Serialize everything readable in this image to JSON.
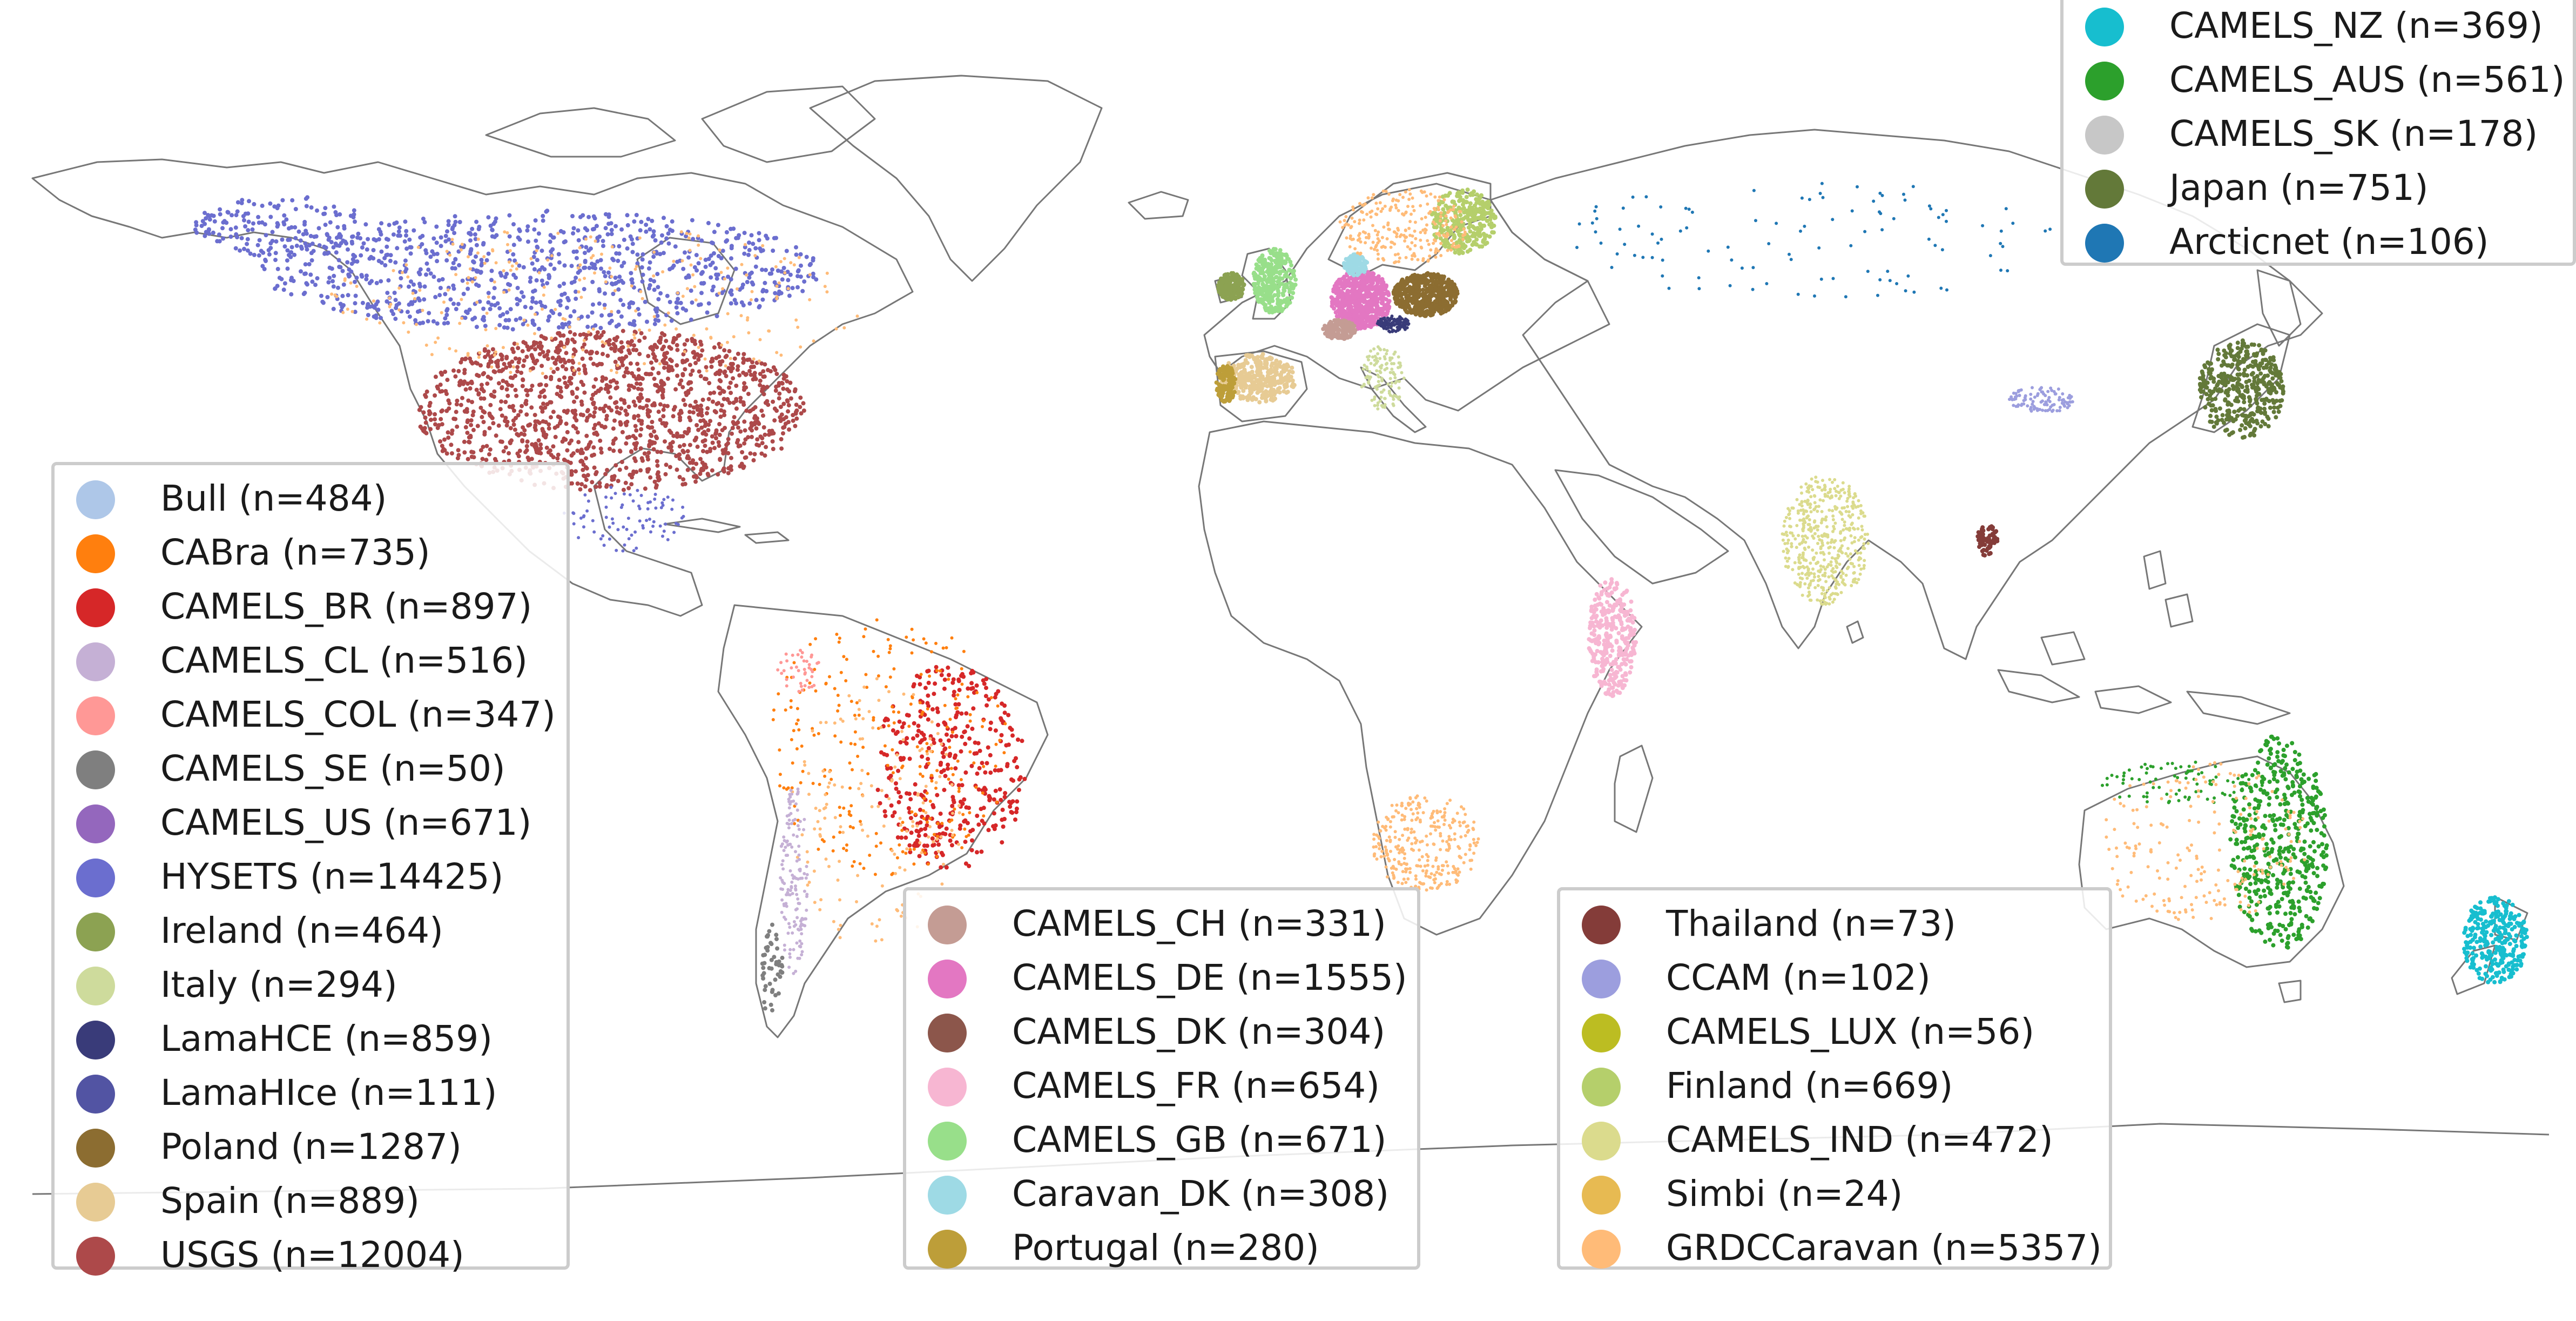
{
  "map": {
    "coastline_color": "#777777",
    "legends": [
      {
        "id": "legend-1",
        "items": [
          {
            "label": "Bull (n=484)",
            "color": "#aec7e8"
          },
          {
            "label": "CABra (n=735)",
            "color": "#ff7f0e"
          },
          {
            "label": "CAMELS_BR (n=897)",
            "color": "#d62728"
          },
          {
            "label": "CAMELS_CL (n=516)",
            "color": "#c5b0d5"
          },
          {
            "label": "CAMELS_COL (n=347)",
            "color": "#ff9896"
          },
          {
            "label": "CAMELS_SE (n=50)",
            "color": "#7f7f7f"
          },
          {
            "label": "CAMELS_US (n=671)",
            "color": "#9467bd"
          },
          {
            "label": "HYSETS (n=14425)",
            "color": "#6b6ecf"
          },
          {
            "label": "Ireland (n=464)",
            "color": "#8ca252"
          },
          {
            "label": "Italy (n=294)",
            "color": "#cedb9c"
          },
          {
            "label": "LamaHCE (n=859)",
            "color": "#393b79"
          },
          {
            "label": "LamaHIce (n=111)",
            "color": "#5254a3"
          },
          {
            "label": "Poland (n=1287)",
            "color": "#8c6d31"
          },
          {
            "label": "Spain (n=889)",
            "color": "#e7cb94"
          },
          {
            "label": "USGS (n=12004)",
            "color": "#ad494a"
          }
        ]
      },
      {
        "id": "legend-2",
        "items": [
          {
            "label": "CAMELS_CH (n=331)",
            "color": "#c49c94"
          },
          {
            "label": "CAMELS_DE (n=1555)",
            "color": "#e377c2"
          },
          {
            "label": "CAMELS_DK (n=304)",
            "color": "#8c564b"
          },
          {
            "label": "CAMELS_FR (n=654)",
            "color": "#f7b6d2"
          },
          {
            "label": "CAMELS_GB (n=671)",
            "color": "#98df8a"
          },
          {
            "label": "Caravan_DK (n=308)",
            "color": "#9edae5"
          },
          {
            "label": "Portugal (n=280)",
            "color": "#bd9e39"
          }
        ]
      },
      {
        "id": "legend-3",
        "items": [
          {
            "label": "Thailand (n=73)",
            "color": "#843c39"
          },
          {
            "label": "CCAM (n=102)",
            "color": "#9c9ede"
          },
          {
            "label": "CAMELS_LUX (n=56)",
            "color": "#bcbd22"
          },
          {
            "label": "Finland (n=669)",
            "color": "#b5cf6b"
          },
          {
            "label": "CAMELS_IND (n=472)",
            "color": "#dbdb8d"
          },
          {
            "label": "Simbi (n=24)",
            "color": "#e7ba52"
          },
          {
            "label": "GRDCCaravan (n=5357)",
            "color": "#ffbb78"
          }
        ]
      },
      {
        "id": "legend-4",
        "items": [
          {
            "label": "CAMELS_NZ (n=369)",
            "color": "#17becf"
          },
          {
            "label": "CAMELS_AUS (n=561)",
            "color": "#2ca02c"
          },
          {
            "label": "CAMELS_SK (n=178)",
            "color": "#c7c7c7"
          },
          {
            "label": "Japan (n=751)",
            "color": "#637939"
          },
          {
            "label": "Arcticnet (n=106)",
            "color": "#1f77b4"
          }
        ]
      }
    ]
  }
}
